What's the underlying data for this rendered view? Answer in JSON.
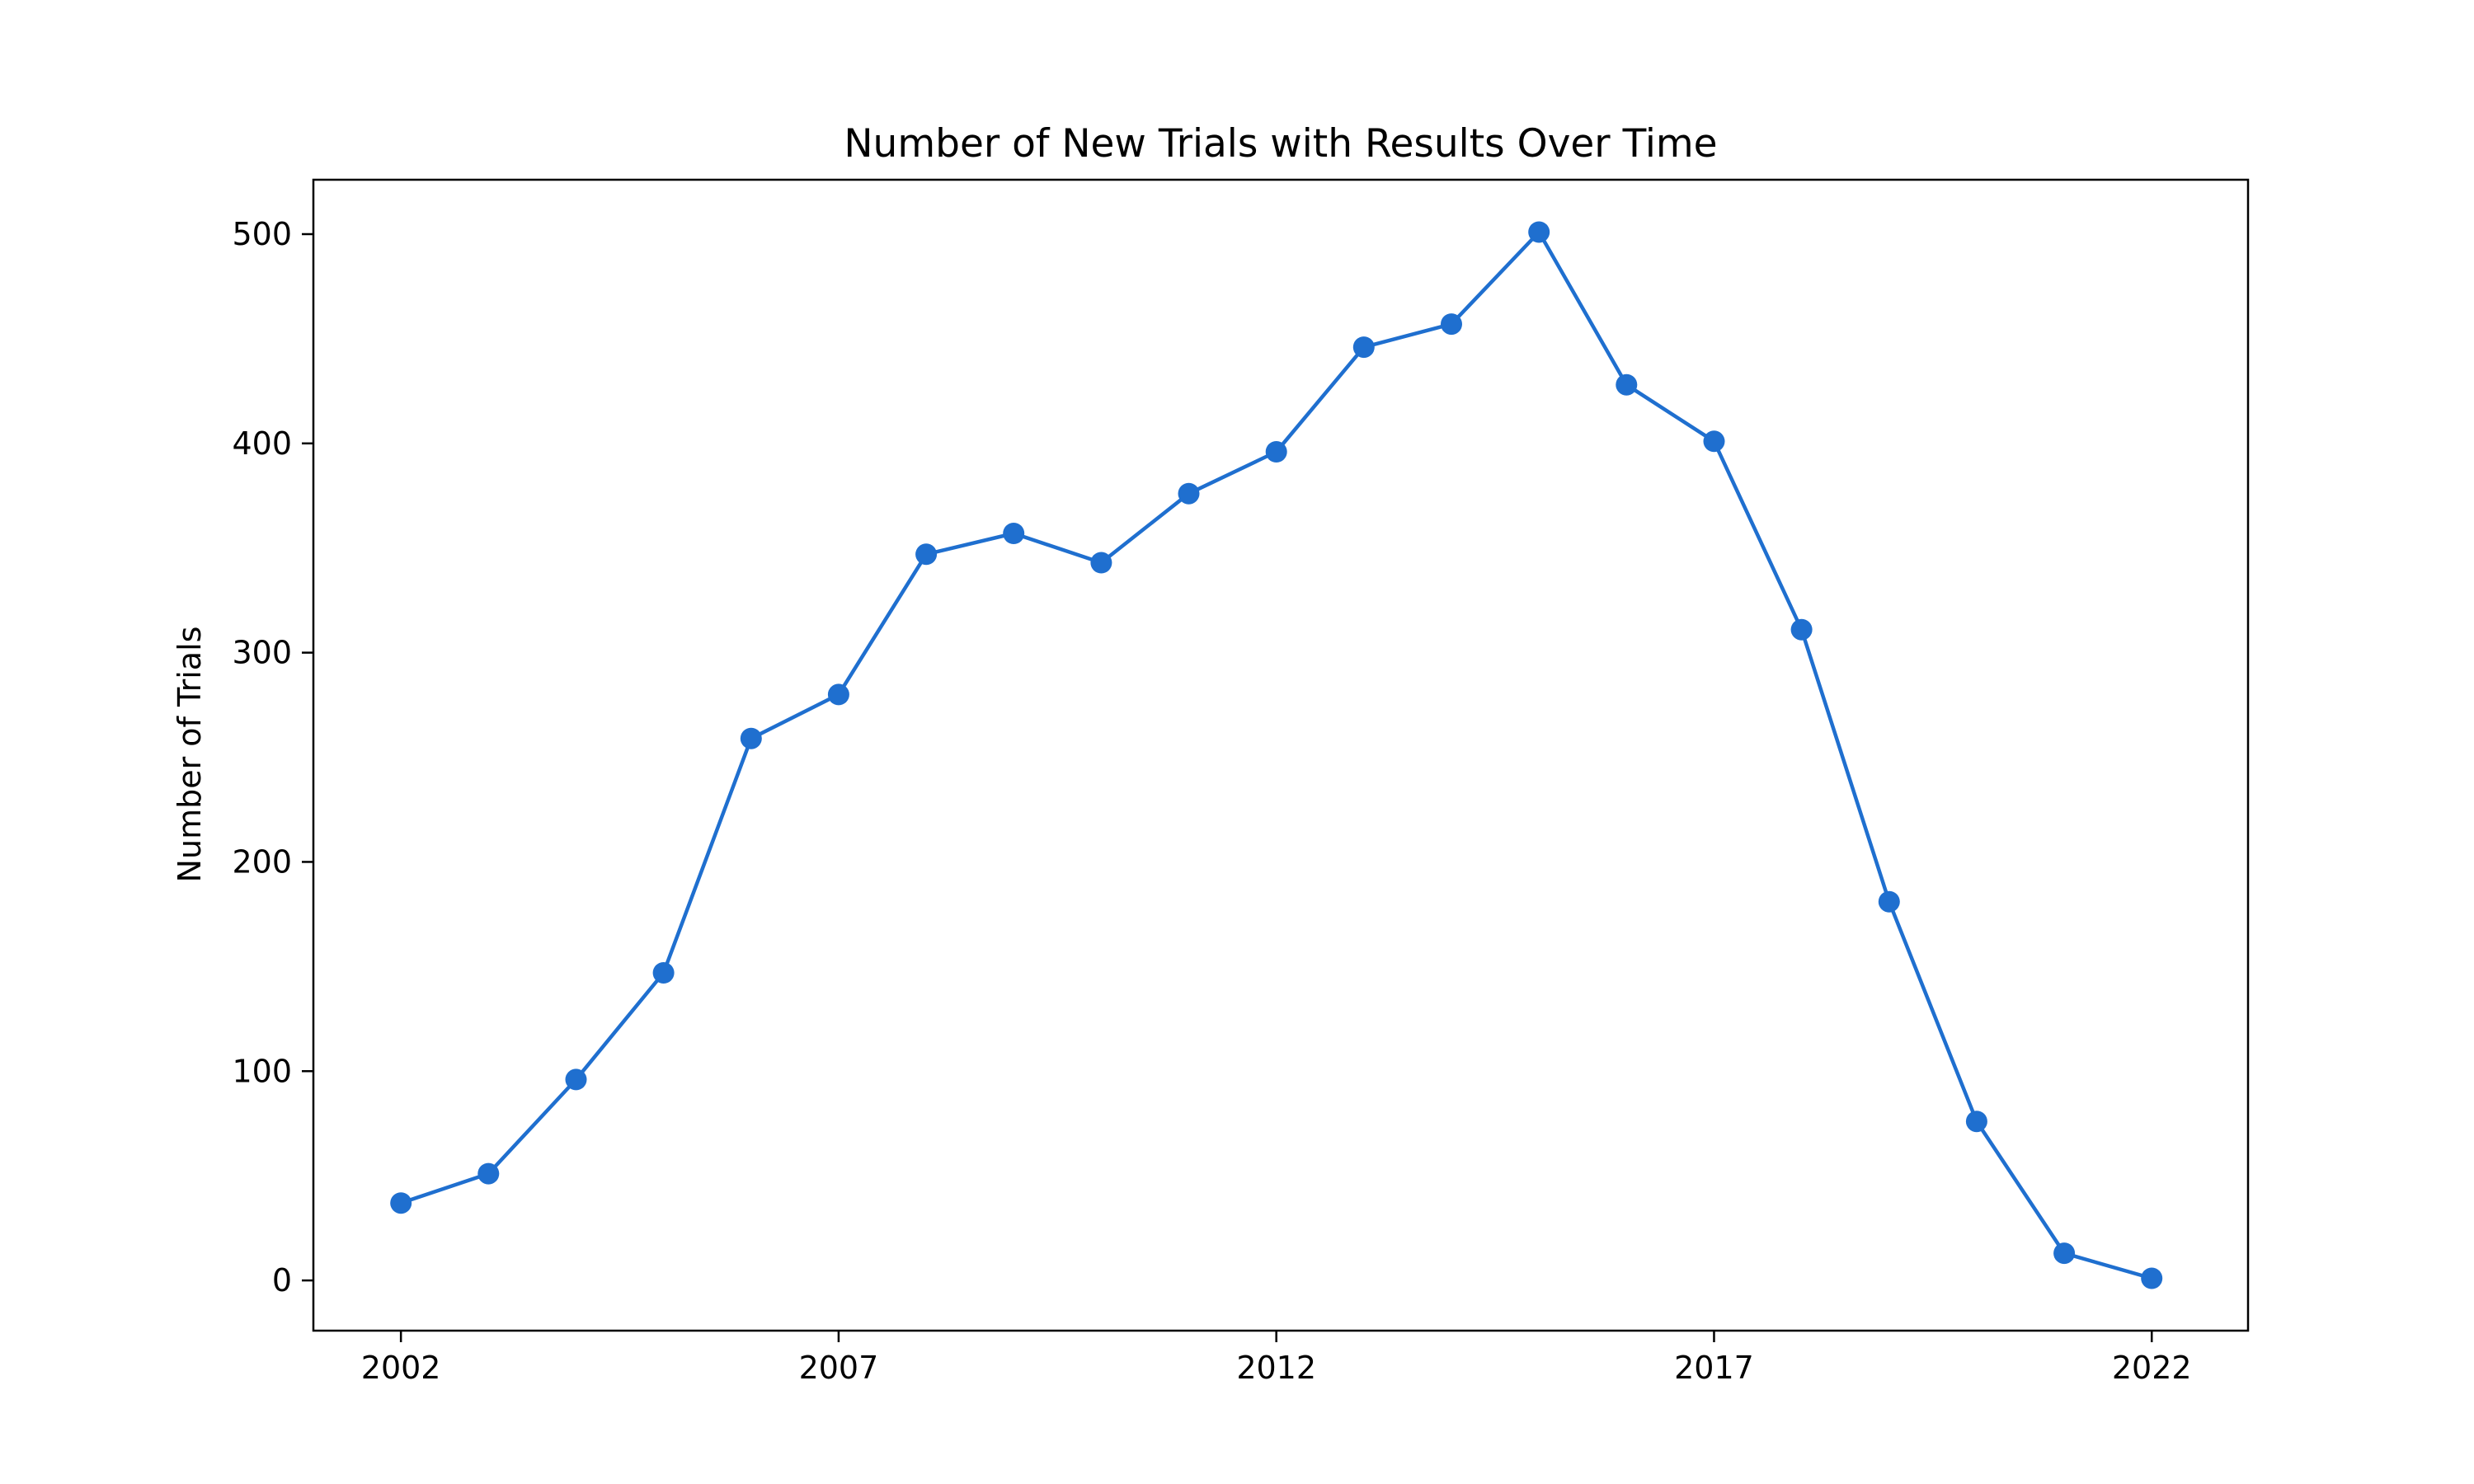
{
  "chart_data": {
    "type": "line",
    "title": "Number of New Trials with Results Over Time",
    "xlabel": "",
    "ylabel": "Number of Trials",
    "x": [
      2002,
      2003,
      2004,
      2005,
      2006,
      2007,
      2008,
      2009,
      2010,
      2011,
      2012,
      2013,
      2014,
      2015,
      2016,
      2017,
      2018,
      2019,
      2020,
      2021,
      2022
    ],
    "series": [
      {
        "name": "",
        "color": "#1f6fcf",
        "marker": "circle",
        "values": [
          37,
          51,
          96,
          147,
          259,
          280,
          347,
          357,
          343,
          376,
          396,
          446,
          457,
          501,
          428,
          401,
          311,
          181,
          76,
          13,
          1
        ]
      }
    ],
    "xticks": [
      "2002",
      "2007",
      "2012",
      "2017",
      "2022"
    ],
    "yticks": [
      "0",
      "100",
      "200",
      "300",
      "400",
      "500"
    ],
    "xlim": [
      2001,
      2023.1
    ],
    "ylim": [
      -24,
      526
    ],
    "grid": false,
    "legend": "none"
  }
}
